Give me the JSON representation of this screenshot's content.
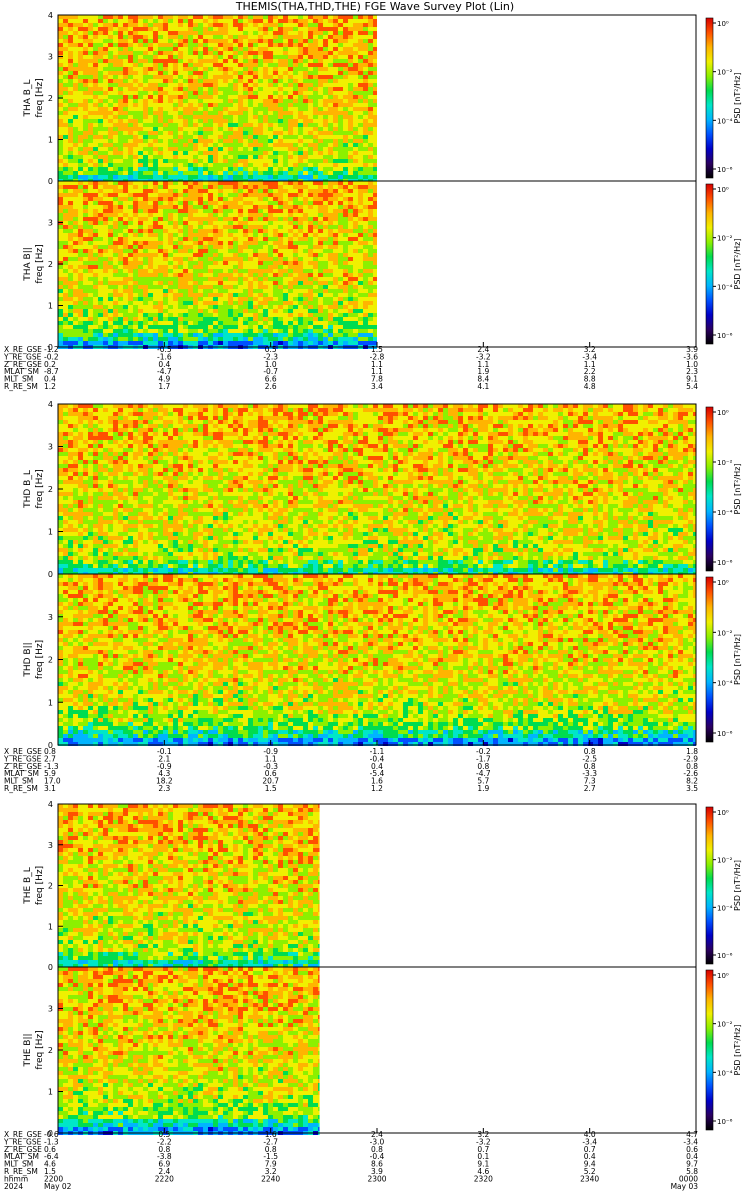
{
  "title": "THEMIS(THA,THD,THE) FGE Wave Survey Plot (Lin)",
  "chart_data": [
    {
      "type": "heatmap",
      "probe": "THA",
      "panels": [
        {
          "ylabel": "THA B_L",
          "yunit": "freq [Hz]",
          "yticks": [
            "0",
            "1",
            "2",
            "3",
            "4"
          ],
          "cbar_label": "PSD [nT²/Hz]",
          "cbar_ticks": [
            "10⁻⁶",
            "10⁻⁴",
            "10⁻²",
            "10⁰"
          ],
          "ylim": [
            0,
            4
          ],
          "data_xfrac": [
            0,
            0.5
          ]
        },
        {
          "ylabel": "THA B||",
          "yunit": "freq [Hz]",
          "yticks": [
            "0",
            "1",
            "2",
            "3"
          ],
          "cbar_label": "PSD [nT²/Hz]",
          "cbar_ticks": [
            "10⁻⁶",
            "10⁻⁴",
            "10⁻²",
            "10⁰"
          ],
          "ylim": [
            0,
            4
          ],
          "data_xfrac": [
            0,
            0.5
          ]
        }
      ],
      "ephemeris": {
        "labels": [
          "X_RE_GSE",
          "Y_RE_GSE",
          "Z_RE_GSE",
          "MLAT_SM",
          "MLT_SM",
          "R_RE_SM"
        ],
        "columns": [
          [
            "-1.2",
            "-0.2",
            "0.2",
            "-8.7",
            "0.4",
            "1.2"
          ],
          [
            "-0.5",
            "-1.6",
            "0.4",
            "-4.7",
            "4.9",
            "1.7"
          ],
          [
            "0.5",
            "-2.3",
            "1.0",
            "-0.7",
            "6.6",
            "2.6"
          ],
          [
            "1.5",
            "-2.8",
            "1.1",
            "1.1",
            "7.8",
            "3.4"
          ],
          [
            "2.4",
            "-3.2",
            "1.1",
            "1.9",
            "8.4",
            "4.1"
          ],
          [
            "3.2",
            "-3.4",
            "1.1",
            "2.2",
            "8.8",
            "4.8"
          ],
          [
            "3.9",
            "-3.6",
            "1.0",
            "2.3",
            "9.1",
            "5.4"
          ]
        ]
      }
    },
    {
      "type": "heatmap",
      "probe": "THD",
      "panels": [
        {
          "ylabel": "THD B_L",
          "yunit": "freq [Hz]",
          "yticks": [
            "0",
            "1",
            "2",
            "3",
            "4"
          ],
          "cbar_label": "PSD [nT²/Hz]",
          "cbar_ticks": [
            "10⁻⁶",
            "10⁻⁴",
            "10⁻²",
            "10⁰"
          ],
          "ylim": [
            0,
            4
          ],
          "data_xfrac": [
            0,
            1
          ]
        },
        {
          "ylabel": "THD B||",
          "yunit": "freq [Hz]",
          "yticks": [
            "0",
            "1",
            "2",
            "3"
          ],
          "cbar_label": "PSD [nT²/Hz]",
          "cbar_ticks": [
            "10⁻⁶",
            "10⁻⁴",
            "10⁻²",
            "10⁰"
          ],
          "ylim": [
            0,
            4
          ],
          "data_xfrac": [
            0,
            1
          ]
        }
      ],
      "ephemeris": {
        "labels": [
          "X_RE_GSE",
          "Y_RE_GSE",
          "Z_RE_GSE",
          "MLAT_SM",
          "MLT_SM",
          "R_RE_SM"
        ],
        "columns": [
          [
            "0.8",
            "2.7",
            "-1.3",
            "5.9",
            "17.0",
            "3.1"
          ],
          [
            "-0.1",
            "2.1",
            "-0.9",
            "4.3",
            "18.2",
            "2.3"
          ],
          [
            "-0.9",
            "1.1",
            "-0.3",
            "0.6",
            "20.7",
            "1.5"
          ],
          [
            "-1.1",
            "-0.4",
            "0.4",
            "-5.4",
            "1.6",
            "1.2"
          ],
          [
            "-0.2",
            "-1.7",
            "0.8",
            "-4.7",
            "5.7",
            "1.9"
          ],
          [
            "0.8",
            "-2.5",
            "0.8",
            "-3.3",
            "7.3",
            "2.7"
          ],
          [
            "1.8",
            "-2.9",
            "0.8",
            "-2.6",
            "8.2",
            "3.5"
          ]
        ]
      }
    },
    {
      "type": "heatmap",
      "probe": "THE",
      "panels": [
        {
          "ylabel": "THE B_L",
          "yunit": "freq [Hz]",
          "yticks": [
            "0",
            "1",
            "2",
            "3",
            "4"
          ],
          "cbar_label": "PSD [nT²/Hz]",
          "cbar_ticks": [
            "10⁻⁶",
            "10⁻⁴",
            "10⁻²",
            "10⁰"
          ],
          "ylim": [
            0,
            4
          ],
          "data_xfrac": [
            0,
            0.41
          ]
        },
        {
          "ylabel": "THE B||",
          "yunit": "freq [Hz]",
          "yticks": [
            "0",
            "1",
            "2",
            "3"
          ],
          "cbar_label": "PSD [nT²/Hz]",
          "cbar_ticks": [
            "10⁻⁶",
            "10⁻⁴",
            "10⁻²",
            "10⁰"
          ],
          "ylim": [
            0,
            4
          ],
          "data_xfrac": [
            0,
            0.41
          ]
        }
      ],
      "ephemeris": {
        "labels": [
          "X_RE_GSE",
          "Y_RE_GSE",
          "Z_RE_GSE",
          "MLAT_SM",
          "MLT_SM",
          "R_RE_SM",
          "hhmm",
          "2024"
        ],
        "columns": [
          [
            "-0.6",
            "-1.3",
            "0.6",
            "-6.4",
            "4.6",
            "1.5",
            "2200",
            "May 02"
          ],
          [
            "0.5",
            "-2.2",
            "0.8",
            "-3.8",
            "6.9",
            "2.4",
            "2220",
            ""
          ],
          [
            "1.6",
            "-2.7",
            "0.8",
            "-1.5",
            "7.9",
            "3.2",
            "2240",
            ""
          ],
          [
            "2.4",
            "-3.0",
            "0.8",
            "-0.4",
            "8.6",
            "3.9",
            "2300",
            ""
          ],
          [
            "3.2",
            "-3.2",
            "0.7",
            "0.1",
            "9.1",
            "4.6",
            "2320",
            ""
          ],
          [
            "4.0",
            "-3.4",
            "0.7",
            "0.4",
            "9.4",
            "5.2",
            "2340",
            ""
          ],
          [
            "4.7",
            "-3.4",
            "0.6",
            "0.4",
            "9.7",
            "5.8",
            "0000",
            "May 03"
          ]
        ]
      }
    }
  ],
  "colors": {
    "colormap": [
      "#000000",
      "#2b0060",
      "#0000c8",
      "#0050ff",
      "#00b4ff",
      "#00e6c8",
      "#00dc50",
      "#8cf000",
      "#f0f000",
      "#ffb400",
      "#ff5000",
      "#d70000"
    ]
  }
}
